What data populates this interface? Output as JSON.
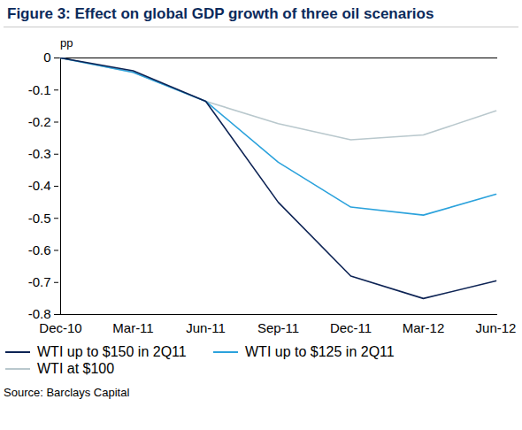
{
  "chart_data": {
    "type": "line",
    "title": "Figure 3: Effect on global GDP growth of three oil scenarios",
    "y_label": "pp",
    "source": "Source: Barclays Capital",
    "categories": [
      "Dec-10",
      "Mar-11",
      "Jun-11",
      "Sep-11",
      "Dec-11",
      "Mar-12",
      "Jun-12"
    ],
    "series": [
      {
        "name": "WTI up to $150 in 2Q11",
        "color": "#0d2354",
        "values": [
          0,
          -0.04,
          -0.135,
          -0.45,
          -0.68,
          -0.75,
          -0.695
        ]
      },
      {
        "name": "WTI up to $125 in 2Q11",
        "color": "#2ba2dc",
        "values": [
          0,
          -0.045,
          -0.135,
          -0.325,
          -0.465,
          -0.49,
          -0.425
        ]
      },
      {
        "name": "WTI at $100",
        "color": "#b9c8cd",
        "values": [
          0,
          -0.045,
          -0.135,
          -0.205,
          -0.255,
          -0.24,
          -0.165
        ]
      }
    ],
    "ylim": [
      -0.8,
      0
    ],
    "yticks": [
      0,
      -0.1,
      -0.2,
      -0.3,
      -0.4,
      -0.5,
      -0.6,
      -0.7,
      -0.8
    ],
    "grid": false,
    "legend": "bottom"
  }
}
